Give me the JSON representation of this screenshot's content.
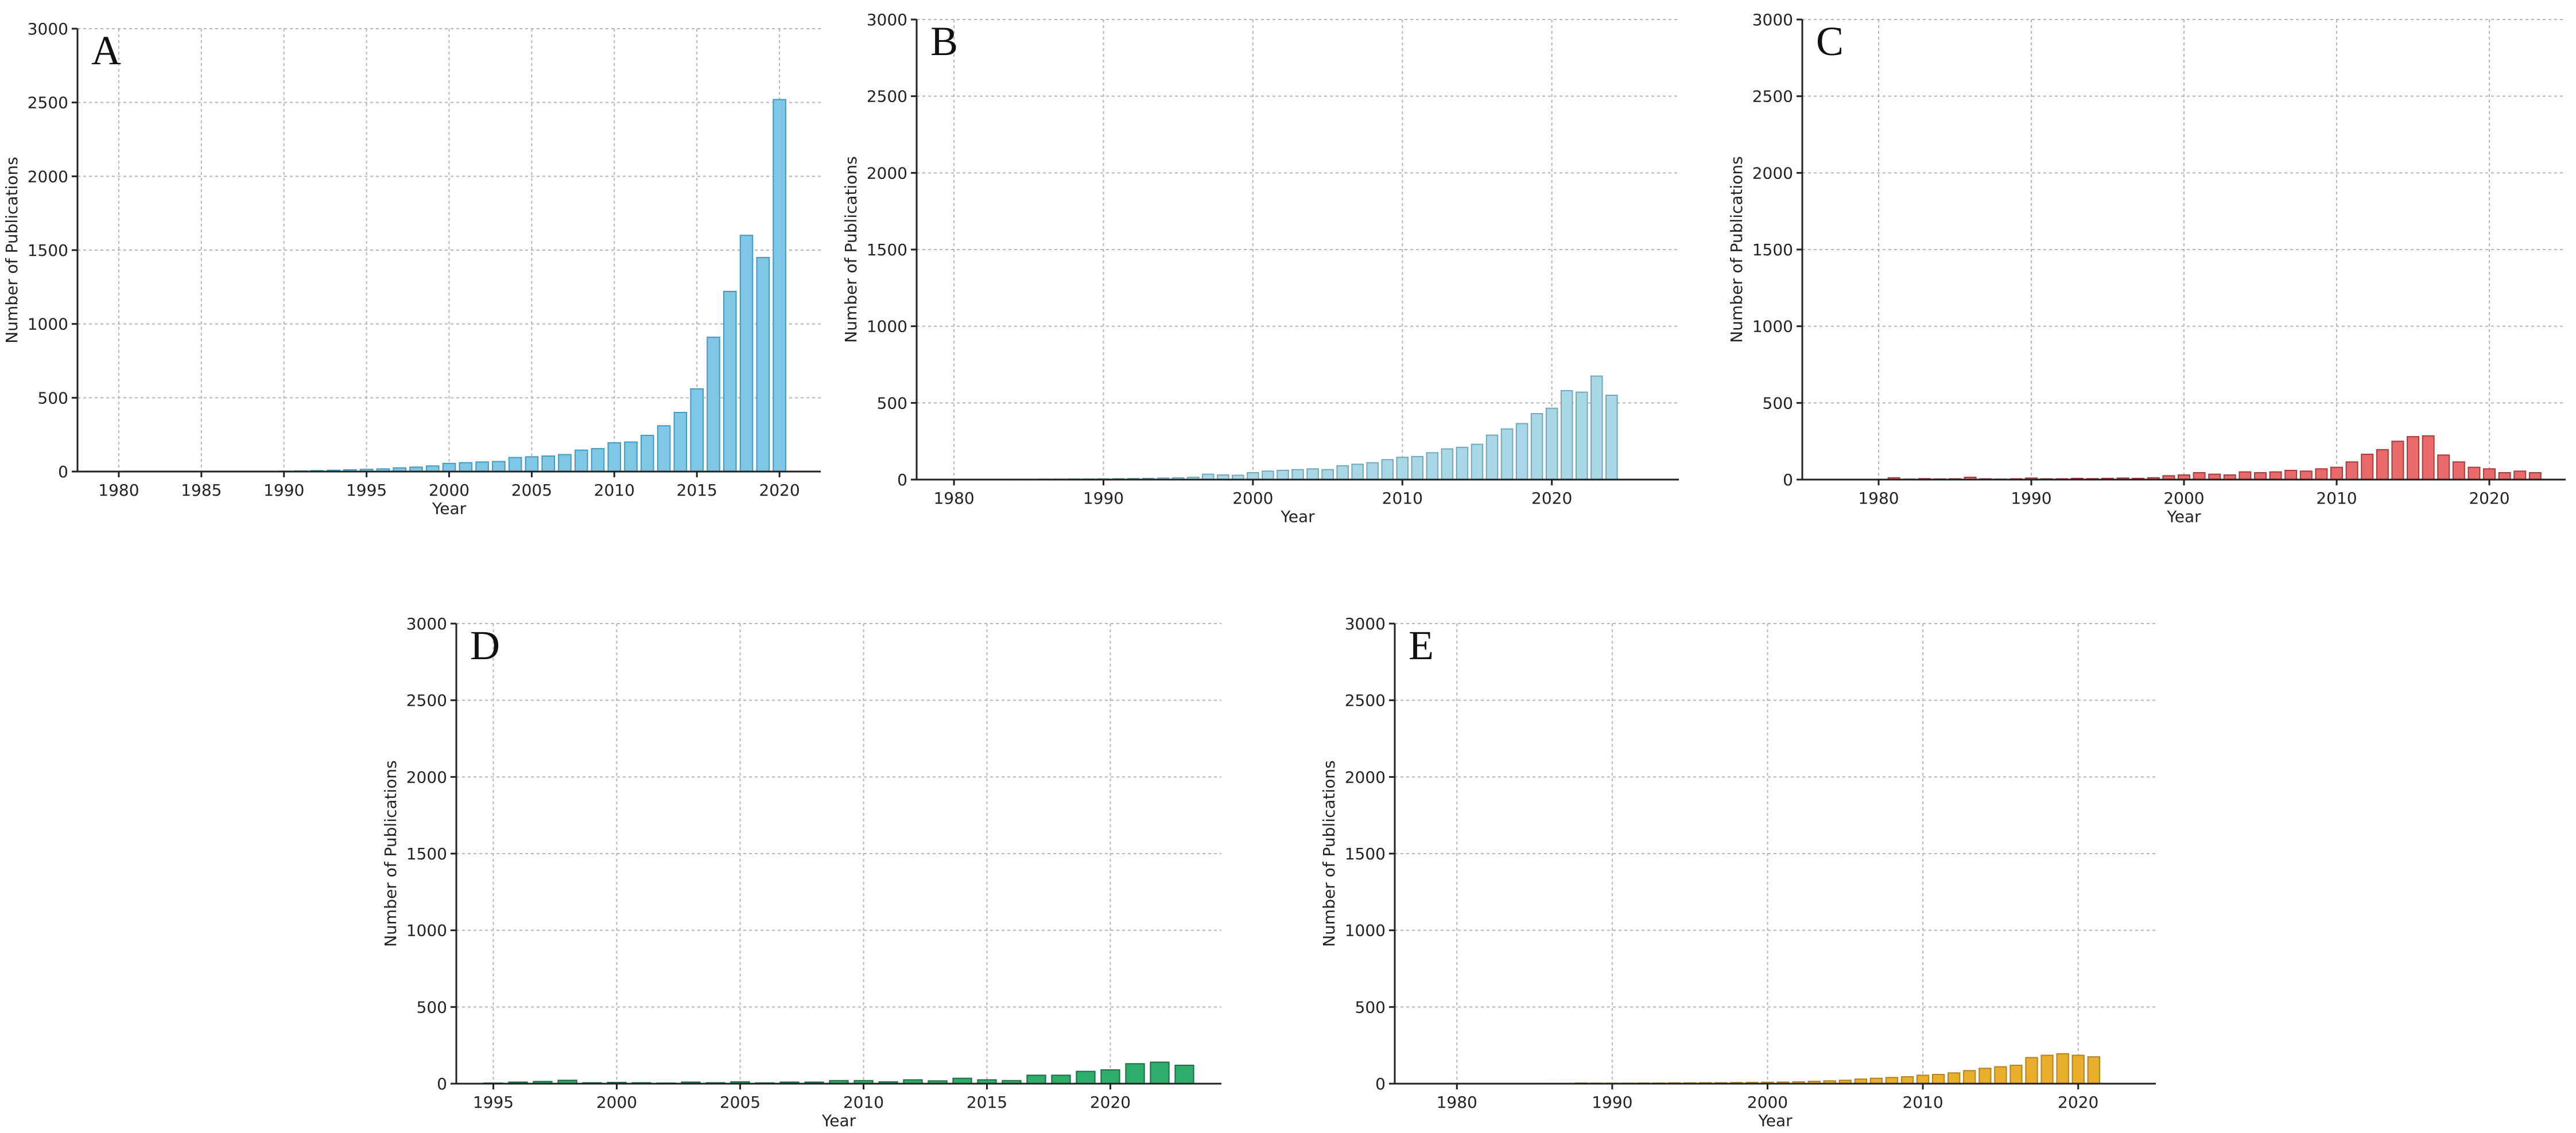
{
  "chart_data": [
    {
      "panel": "A",
      "type": "bar",
      "xlabel": "Year",
      "ylabel": "Number of Publications",
      "ylim": [
        0,
        3000
      ],
      "yticks": [
        0,
        500,
        1000,
        1500,
        2000,
        2500,
        3000
      ],
      "xlim": [
        1977.5,
        2022.5
      ],
      "xticks": [
        1980,
        1985,
        1990,
        1995,
        2000,
        2005,
        2010,
        2015,
        2020
      ],
      "grid": true,
      "color": "#7EC8E6",
      "edge": "#3F9AC4",
      "x": [
        1980,
        1981,
        1982,
        1983,
        1984,
        1985,
        1986,
        1987,
        1988,
        1989,
        1990,
        1991,
        1992,
        1993,
        1994,
        1995,
        1996,
        1997,
        1998,
        1999,
        2000,
        2001,
        2002,
        2003,
        2004,
        2005,
        2006,
        2007,
        2008,
        2009,
        2010,
        2011,
        2012,
        2013,
        2014,
        2015,
        2016,
        2017,
        2018,
        2019,
        2020
      ],
      "values": [
        1,
        1,
        1,
        1,
        1,
        1,
        1,
        1,
        2,
        2,
        3,
        4,
        6,
        9,
        12,
        15,
        18,
        25,
        30,
        38,
        55,
        60,
        65,
        68,
        95,
        100,
        105,
        115,
        145,
        155,
        195,
        200,
        245,
        310,
        400,
        560,
        910,
        1220,
        1600,
        1450,
        2520
      ]
    },
    {
      "panel": "B",
      "type": "bar",
      "xlabel": "Year",
      "ylabel": "Number of Publications",
      "ylim": [
        0,
        3000
      ],
      "yticks": [
        0,
        500,
        1000,
        1500,
        2000,
        2500,
        3000
      ],
      "xlim": [
        1977.5,
        2028.5
      ],
      "xticks": [
        1980,
        1990,
        2000,
        2010,
        2020
      ],
      "grid": true,
      "color": "#A8D8E6",
      "edge": "#6FA8BE",
      "x": [
        1980,
        1981,
        1982,
        1983,
        1984,
        1985,
        1986,
        1987,
        1988,
        1989,
        1990,
        1991,
        1992,
        1993,
        1994,
        1995,
        1996,
        1997,
        1998,
        1999,
        2000,
        2001,
        2002,
        2003,
        2004,
        2005,
        2006,
        2007,
        2008,
        2009,
        2010,
        2011,
        2012,
        2013,
        2014,
        2015,
        2016,
        2017,
        2018,
        2019,
        2020,
        2021,
        2022,
        2023,
        2024
      ],
      "values": [
        1,
        1,
        1,
        1,
        2,
        2,
        3,
        3,
        4,
        4,
        5,
        6,
        7,
        8,
        10,
        12,
        15,
        35,
        30,
        28,
        45,
        55,
        60,
        65,
        70,
        65,
        90,
        100,
        110,
        130,
        145,
        150,
        175,
        200,
        210,
        230,
        290,
        330,
        365,
        430,
        465,
        580,
        570,
        675,
        550
      ]
    },
    {
      "panel": "C",
      "type": "bar",
      "xlabel": "Year",
      "ylabel": "Number of Publications",
      "ylim": [
        0,
        3000
      ],
      "yticks": [
        0,
        500,
        1000,
        1500,
        2000,
        2500,
        3000
      ],
      "xlim": [
        1975.0,
        2025.0
      ],
      "xticks": [
        1980,
        1990,
        2000,
        2010,
        2020
      ],
      "grid": true,
      "color": "#E96A6A",
      "edge": "#A83A3A",
      "x": [
        1980,
        1981,
        1982,
        1983,
        1984,
        1985,
        1986,
        1987,
        1988,
        1989,
        1990,
        1991,
        1992,
        1993,
        1994,
        1995,
        1996,
        1997,
        1998,
        1999,
        2000,
        2001,
        2002,
        2003,
        2004,
        2005,
        2006,
        2007,
        2008,
        2009,
        2010,
        2011,
        2012,
        2013,
        2014,
        2015,
        2016,
        2017,
        2018,
        2019,
        2020,
        2021,
        2022,
        2023
      ],
      "values": [
        2,
        12,
        3,
        6,
        4,
        5,
        15,
        5,
        3,
        5,
        10,
        5,
        5,
        8,
        6,
        8,
        10,
        8,
        12,
        25,
        30,
        45,
        35,
        30,
        50,
        45,
        50,
        60,
        55,
        70,
        80,
        115,
        165,
        195,
        250,
        280,
        285,
        160,
        115,
        80,
        70,
        45,
        55,
        45
      ]
    },
    {
      "panel": "D",
      "type": "bar",
      "xlabel": "Year",
      "ylabel": "Number of Publications",
      "ylim": [
        0,
        3000
      ],
      "yticks": [
        0,
        500,
        1000,
        1500,
        2000,
        2500,
        3000
      ],
      "xlim": [
        1993.5,
        2024.5
      ],
      "xticks": [
        1995,
        2000,
        2005,
        2010,
        2015,
        2020
      ],
      "grid": true,
      "color": "#2EAD6B",
      "edge": "#1B6E43",
      "x": [
        1995,
        1996,
        1997,
        1998,
        1999,
        2000,
        2001,
        2002,
        2003,
        2004,
        2005,
        2006,
        2007,
        2008,
        2009,
        2010,
        2011,
        2012,
        2013,
        2014,
        2015,
        2016,
        2017,
        2018,
        2019,
        2020,
        2021,
        2022,
        2023
      ],
      "values": [
        4,
        10,
        14,
        22,
        6,
        8,
        6,
        4,
        10,
        6,
        12,
        5,
        10,
        10,
        20,
        20,
        12,
        25,
        18,
        35,
        25,
        20,
        55,
        55,
        80,
        90,
        130,
        140,
        120
      ]
    },
    {
      "panel": "E",
      "type": "bar",
      "xlabel": "Year",
      "ylabel": "Number of Publications",
      "ylim": [
        0,
        3000
      ],
      "yticks": [
        0,
        500,
        1000,
        1500,
        2000,
        2500,
        3000
      ],
      "xlim": [
        1976.0,
        2025.0
      ],
      "xticks": [
        1980,
        1990,
        2000,
        2010,
        2020
      ],
      "grid": true,
      "color": "#E8AE2C",
      "edge": "#B5831A",
      "x": [
        1980,
        1981,
        1982,
        1983,
        1984,
        1985,
        1986,
        1987,
        1988,
        1989,
        1990,
        1991,
        1992,
        1993,
        1994,
        1995,
        1996,
        1997,
        1998,
        1999,
        2000,
        2001,
        2002,
        2003,
        2004,
        2005,
        2006,
        2007,
        2008,
        2009,
        2010,
        2011,
        2012,
        2013,
        2014,
        2015,
        2016,
        2017,
        2018,
        2019,
        2020,
        2021
      ],
      "values": [
        1,
        1,
        1,
        1,
        1,
        1,
        2,
        2,
        4,
        3,
        3,
        3,
        4,
        4,
        5,
        5,
        6,
        6,
        7,
        8,
        9,
        10,
        12,
        15,
        18,
        22,
        30,
        35,
        40,
        45,
        55,
        60,
        70,
        85,
        100,
        110,
        120,
        170,
        185,
        195,
        185,
        175
      ]
    }
  ]
}
